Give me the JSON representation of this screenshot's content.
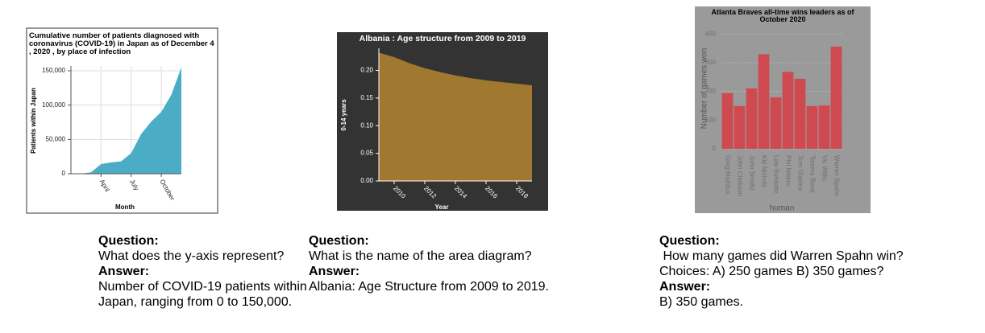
{
  "chart_data": [
    {
      "type": "area",
      "title": "Cumulative number of patients diagnosed with coronavirus (COVID-19) in Japan as of December 4 , 2020 , by place of infection",
      "x_label": "Month",
      "y_label": "Patients within Japan",
      "categories": [
        null,
        null,
        null,
        "April",
        null,
        null,
        "July",
        null,
        null,
        "October",
        null,
        null
      ],
      "values": [
        0,
        200,
        2000,
        14000,
        16500,
        18000,
        30000,
        58000,
        76000,
        90000,
        115000,
        155000
      ],
      "color": "#4bacc6",
      "ylim": [
        0,
        157000
      ],
      "yticks": [
        0,
        {
          "value": 50000,
          "label": "50,000"
        },
        {
          "value": 100000,
          "label": "100,000"
        },
        {
          "value": 150000,
          "label": "150,000"
        }
      ],
      "grid": true
    },
    {
      "type": "area",
      "title": "Albania : Age structure from 2009 to 2019",
      "x_label": "Year",
      "y_label": "0-14 years",
      "x": [
        2009,
        2010,
        2011,
        2012,
        2013,
        2014,
        2015,
        2016,
        2017,
        2018,
        2019
      ],
      "values": [
        0.232,
        0.224,
        0.213,
        0.204,
        0.197,
        0.191,
        0.186,
        0.182,
        0.179,
        0.176,
        0.173
      ],
      "color": "#a0782f",
      "xlim": [
        2009,
        2019
      ],
      "xticks": [
        2010,
        2012,
        2014,
        2016,
        2018
      ],
      "ylim": [
        0,
        0.24
      ],
      "yticks": [
        {
          "value": 0,
          "label": "0.00"
        },
        0.05,
        {
          "value": 0.1,
          "label": "0.10"
        },
        0.15,
        {
          "value": 0.2,
          "label": "0.20"
        }
      ],
      "grid": false
    },
    {
      "type": "bar",
      "title": "Atlanta Braves all-time wins leaders as of October 2020",
      "x_label": "human",
      "y_label": "Number of games won",
      "categories": [
        "Greg Maddux",
        "John Clarkson",
        "John Smoltz",
        "Kid Nichols",
        "Lew Burdette",
        "Phil Niekro",
        "Tom Glavine",
        "Tommy Bond",
        "Vic Willis",
        "Warren Spahn"
      ],
      "values": [
        194,
        149,
        210,
        329,
        179,
        268,
        244,
        149,
        151,
        356
      ],
      "color": "#cf4a50",
      "ylim": [
        0,
        420
      ],
      "yticks": [
        0,
        100,
        200,
        300,
        400
      ],
      "grid": true
    }
  ],
  "qa": [
    {
      "question_label": "Question:",
      "question": "What does the y-axis represent?",
      "answer_label": "Answer:",
      "answer": "Number of COVID-19 patients within Japan, ranging from 0 to 150,000."
    },
    {
      "question_label": "Question:",
      "question": "What is the name of the area diagram?",
      "answer_label": "Answer:",
      "answer": "Albania: Age Structure from 2009 to 2019."
    },
    {
      "question_label": "Question:",
      "question": " How many games did Warren Spahn win? Choices: A) 250 games B) 350 games?",
      "answer_label": "Answer:",
      "answer": "B) 350 games."
    }
  ]
}
